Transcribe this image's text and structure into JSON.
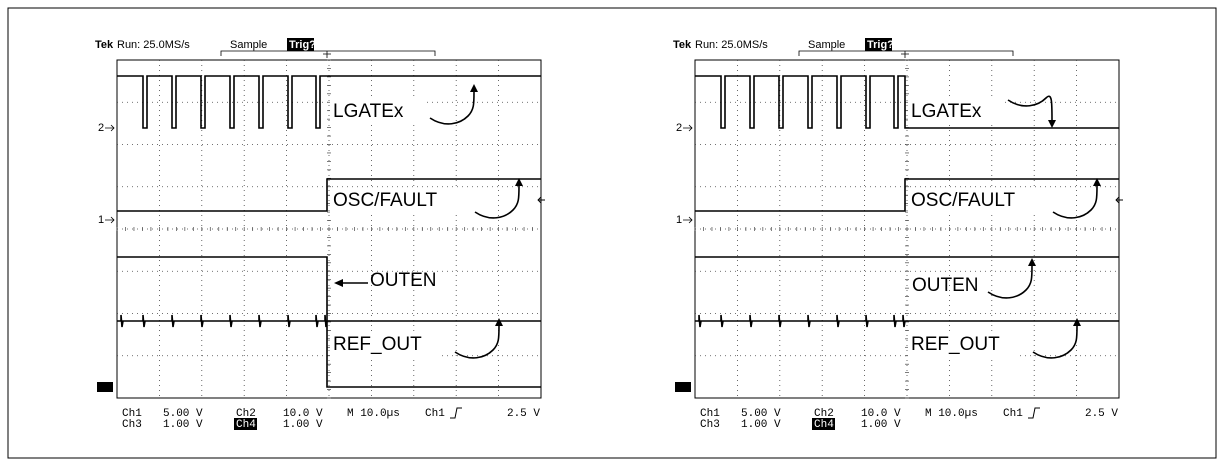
{
  "scopes": [
    {
      "header": {
        "brand": "Tek",
        "run": "Run: 25.0MS/s",
        "mode": "Sample",
        "trigger": "Trig?"
      },
      "channel_markers": [
        "2",
        "1"
      ],
      "labels": [
        "LGATEx",
        "OSC/FAULT",
        "OUTEN",
        "REF_OUT"
      ],
      "readout": {
        "row1": [
          "Ch1",
          "5.00 V",
          "Ch2",
          "10.0 V",
          "M 10.0µs",
          "Ch1",
          "2.5 V"
        ],
        "row2": [
          "Ch3",
          "1.00 V",
          "Ch4",
          "1.00 V"
        ]
      }
    },
    {
      "header": {
        "brand": "Tek",
        "run": "Run: 25.0MS/s",
        "mode": "Sample",
        "trigger": "Trig?"
      },
      "channel_markers": [
        "2",
        "1"
      ],
      "labels": [
        "LGATEx",
        "OSC/FAULT",
        "OUTEN",
        "REF_OUT"
      ],
      "readout": {
        "row1": [
          "Ch1",
          "5.00 V",
          "Ch2",
          "10.0 V",
          "M 10.0µs",
          "Ch1",
          "2.5 V"
        ],
        "row2": [
          "Ch3",
          "1.00 V",
          "Ch4",
          "1.00 V"
        ]
      }
    }
  ]
}
